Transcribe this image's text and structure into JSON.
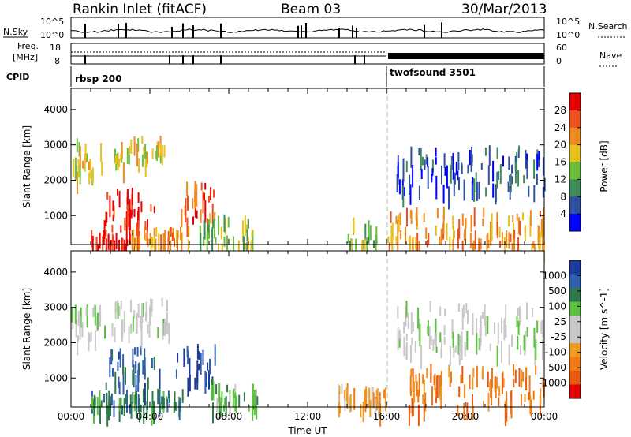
{
  "header": {
    "station": "Rankin Inlet (fitACF)",
    "beam": "Beam 03",
    "date": "30/Mar/2013"
  },
  "top_panels": {
    "nsky_label": "N.Sky",
    "nsky_axis_top": "10^5",
    "nsky_axis_bottom": "10^0",
    "nsearch_axis_top": "10^5",
    "nsearch_axis_bottom": "10^0",
    "nsearch_label": "N.Search",
    "freq_label_line1": "Freq.",
    "freq_label_line2": "[MHz]",
    "freq_axis_top": "18",
    "freq_axis_bottom": "8",
    "nave_axis_top": "60",
    "nave_axis_bottom": "0",
    "nave_label": "Nave",
    "cpid_label": "CPID",
    "cpid_segments": [
      {
        "name": "rbsp 200",
        "start_hour": 0,
        "end_hour": 16
      },
      {
        "name": "twofsound 3501",
        "start_hour": 16,
        "end_hour": 24
      }
    ]
  },
  "colors": {
    "power_scale": [
      "#0000ff",
      "#2f4fa0",
      "#3c8c5a",
      "#6abf3a",
      "#e6c21a",
      "#f08a1e",
      "#f0501e",
      "#e80000"
    ],
    "velocity_scale": [
      "#1a3a9c",
      "#2f5fb0",
      "#2c7a4a",
      "#5ac23c",
      "#c8c8c8",
      "#c8c8c8",
      "#f29a1e",
      "#f27a12",
      "#ea5a0c",
      "#e60000"
    ]
  },
  "chart_data": [
    {
      "type": "heatmap",
      "panel": "power",
      "xlabel": "Time UT",
      "ylabel": "Slant Range [km]",
      "xlim": [
        0,
        24
      ],
      "ylim": [
        180,
        4600
      ],
      "x_tick_labels": [
        "00:00",
        "04:00",
        "08:00",
        "12:00",
        "16:00",
        "20:00",
        "00:00"
      ],
      "y_tick_labels": [
        "1000",
        "2000",
        "3000",
        "4000"
      ],
      "y_ticks": [
        1000,
        2000,
        3000,
        4000
      ],
      "colorbar_label": "Power [dB]",
      "colorbar_ticks": [
        "4",
        "8",
        "12",
        "16",
        "20",
        "24",
        "28"
      ],
      "scatter_regions": [
        {
          "t0": 0.0,
          "t1": 1.6,
          "r0": 2200,
          "r1": 3200,
          "level": 4
        },
        {
          "t0": 1.6,
          "t1": 4.3,
          "r0": 700,
          "r1": 1800,
          "level": 7
        },
        {
          "t0": 2.2,
          "t1": 4.8,
          "r0": 2500,
          "r1": 3300,
          "level": 4
        },
        {
          "t0": 1.0,
          "t1": 3.5,
          "r0": 200,
          "r1": 600,
          "level": 7
        },
        {
          "t0": 3.0,
          "t1": 6.0,
          "r0": 300,
          "r1": 700,
          "level": 5
        },
        {
          "t0": 5.3,
          "t1": 7.3,
          "r0": 900,
          "r1": 2000,
          "level": 6
        },
        {
          "t0": 6.5,
          "t1": 9.2,
          "r0": 200,
          "r1": 1100,
          "level": 3
        },
        {
          "t0": 14.0,
          "t1": 15.5,
          "r0": 200,
          "r1": 1000,
          "level": 3
        },
        {
          "t0": 16.0,
          "t1": 24.0,
          "r0": 200,
          "r1": 1300,
          "level": 5
        },
        {
          "t0": 16.5,
          "t1": 24.0,
          "r0": 1800,
          "r1": 3000,
          "level": 1
        }
      ]
    },
    {
      "type": "heatmap",
      "panel": "velocity",
      "xlabel": "Time UT",
      "ylabel": "Slant Range [km]",
      "xlim": [
        0,
        24
      ],
      "ylim": [
        180,
        4600
      ],
      "x_tick_labels": [
        "00:00",
        "04:00",
        "08:00",
        "12:00",
        "16:00",
        "20:00",
        "00:00"
      ],
      "y_tick_labels": [
        "1000",
        "2000",
        "3000",
        "4000"
      ],
      "y_ticks": [
        1000,
        2000,
        3000,
        4000
      ],
      "colorbar_label": "Velocity [m s^-1]",
      "colorbar_ticks": [
        "1000",
        "500",
        "100",
        "25",
        "-25",
        "-100",
        "-500",
        "-1000"
      ],
      "scatter_regions": [
        {
          "t0": 0.0,
          "t1": 1.8,
          "r0": 2200,
          "r1": 3100,
          "level": 4
        },
        {
          "t0": 1.7,
          "t1": 4.5,
          "r0": 800,
          "r1": 1900,
          "level": 1
        },
        {
          "t0": 2.0,
          "t1": 5.0,
          "r0": 2400,
          "r1": 3300,
          "level": 4
        },
        {
          "t0": 1.0,
          "t1": 6.0,
          "r0": 200,
          "r1": 700,
          "level": 2
        },
        {
          "t0": 5.3,
          "t1": 7.3,
          "r0": 900,
          "r1": 2000,
          "level": 0
        },
        {
          "t0": 7.0,
          "t1": 9.5,
          "r0": 200,
          "r1": 1000,
          "level": 3
        },
        {
          "t0": 13.5,
          "t1": 16.0,
          "r0": 200,
          "r1": 900,
          "level": 6
        },
        {
          "t0": 17.0,
          "t1": 24.0,
          "r0": 200,
          "r1": 1400,
          "level": 7
        },
        {
          "t0": 16.5,
          "t1": 24.0,
          "r0": 1800,
          "r1": 3200,
          "level": 4
        }
      ]
    }
  ]
}
